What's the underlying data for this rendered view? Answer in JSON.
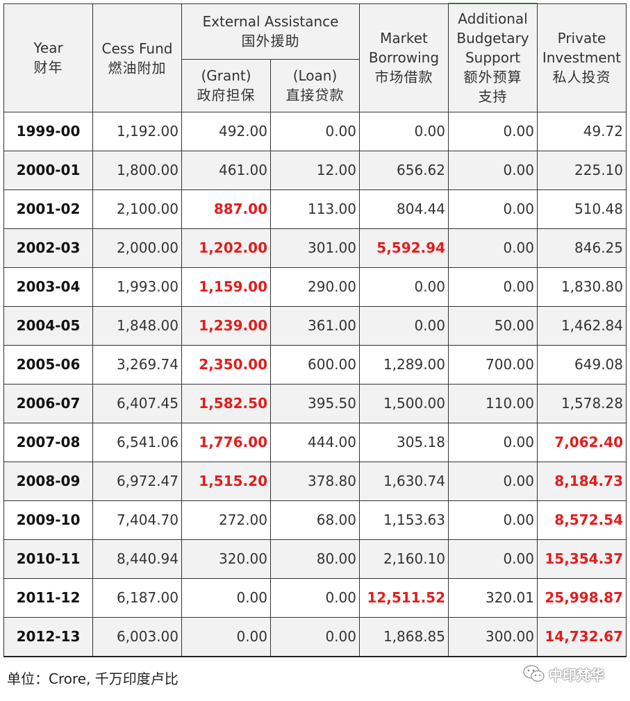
{
  "headers": {
    "year": {
      "en": "Year",
      "zh": "财年"
    },
    "cess": {
      "en": "Cess Fund",
      "zh": "燃油附加"
    },
    "external": {
      "en": "External Assistance",
      "zh": "国外援助"
    },
    "grant": {
      "en": "(Grant)",
      "zh": "政府担保"
    },
    "loan": {
      "en": "(Loan)",
      "zh": "直接贷款"
    },
    "market": {
      "en1": "Market",
      "en2": "Borrowing",
      "zh": "市场借款"
    },
    "budget": {
      "en1": "Additional",
      "en2": "Budgetary",
      "en3": "Support",
      "zh1": "额外预算",
      "zh2": "支持"
    },
    "private": {
      "en1": "Private",
      "en2": "Investment",
      "zh": "私人投资"
    }
  },
  "columns": [
    "year",
    "cess",
    "grant",
    "loan",
    "market",
    "budget",
    "private"
  ],
  "rows": [
    {
      "year": "1999-00",
      "cess": "1,192.00",
      "grant": "492.00",
      "loan": "0.00",
      "market": "0.00",
      "budget": "0.00",
      "private": "49.72",
      "highlight": []
    },
    {
      "year": "2000-01",
      "cess": "1,800.00",
      "grant": "461.00",
      "loan": "12.00",
      "market": "656.62",
      "budget": "0.00",
      "private": "225.10",
      "highlight": []
    },
    {
      "year": "2001-02",
      "cess": "2,100.00",
      "grant": "887.00",
      "loan": "113.00",
      "market": "804.44",
      "budget": "0.00",
      "private": "510.48",
      "highlight": [
        "grant"
      ]
    },
    {
      "year": "2002-03",
      "cess": "2,000.00",
      "grant": "1,202.00",
      "loan": "301.00",
      "market": "5,592.94",
      "budget": "0.00",
      "private": "846.25",
      "highlight": [
        "grant",
        "market"
      ]
    },
    {
      "year": "2003-04",
      "cess": "1,993.00",
      "grant": "1,159.00",
      "loan": "290.00",
      "market": "0.00",
      "budget": "0.00",
      "private": "1,830.80",
      "highlight": [
        "grant"
      ]
    },
    {
      "year": "2004-05",
      "cess": "1,848.00",
      "grant": "1,239.00",
      "loan": "361.00",
      "market": "0.00",
      "budget": "50.00",
      "private": "1,462.84",
      "highlight": [
        "grant"
      ]
    },
    {
      "year": "2005-06",
      "cess": "3,269.74",
      "grant": "2,350.00",
      "loan": "600.00",
      "market": "1,289.00",
      "budget": "700.00",
      "private": "649.08",
      "highlight": [
        "grant"
      ]
    },
    {
      "year": "2006-07",
      "cess": "6,407.45",
      "grant": "1,582.50",
      "loan": "395.50",
      "market": "1,500.00",
      "budget": "110.00",
      "private": "1,578.28",
      "highlight": [
        "grant"
      ]
    },
    {
      "year": "2007-08",
      "cess": "6,541.06",
      "grant": "1,776.00",
      "loan": "444.00",
      "market": "305.18",
      "budget": "0.00",
      "private": "7,062.40",
      "highlight": [
        "grant",
        "private"
      ]
    },
    {
      "year": "2008-09",
      "cess": "6,972.47",
      "grant": "1,515.20",
      "loan": "378.80",
      "market": "1,630.74",
      "budget": "0.00",
      "private": "8,184.73",
      "highlight": [
        "grant",
        "private"
      ]
    },
    {
      "year": "2009-10",
      "cess": "7,404.70",
      "grant": "272.00",
      "loan": "68.00",
      "market": "1,153.63",
      "budget": "0.00",
      "private": "8,572.54",
      "highlight": [
        "private"
      ]
    },
    {
      "year": "2010-11",
      "cess": "8,440.94",
      "grant": "320.00",
      "loan": "80.00",
      "market": "2,160.10",
      "budget": "0.00",
      "private": "15,354.37",
      "highlight": [
        "private"
      ]
    },
    {
      "year": "2011-12",
      "cess": "6,187.00",
      "grant": "0.00",
      "loan": "0.00",
      "market": "12,511.52",
      "budget": "320.01",
      "private": "25,998.87",
      "highlight": [
        "market",
        "private"
      ]
    },
    {
      "year": "2012-13",
      "cess": "6,003.00",
      "grant": "0.00",
      "loan": "0.00",
      "market": "1,868.85",
      "budget": "300.00",
      "private": "14,732.67",
      "highlight": [
        "private"
      ]
    }
  ],
  "colors": {
    "highlight": "#e21d1d",
    "band": "#f2f2f2",
    "border": "#333333"
  },
  "footer": {
    "unit": "单位：Crore, 千万印度卢比"
  },
  "watermark": {
    "text": "中印梵华",
    "icon": "wechat-icon"
  }
}
